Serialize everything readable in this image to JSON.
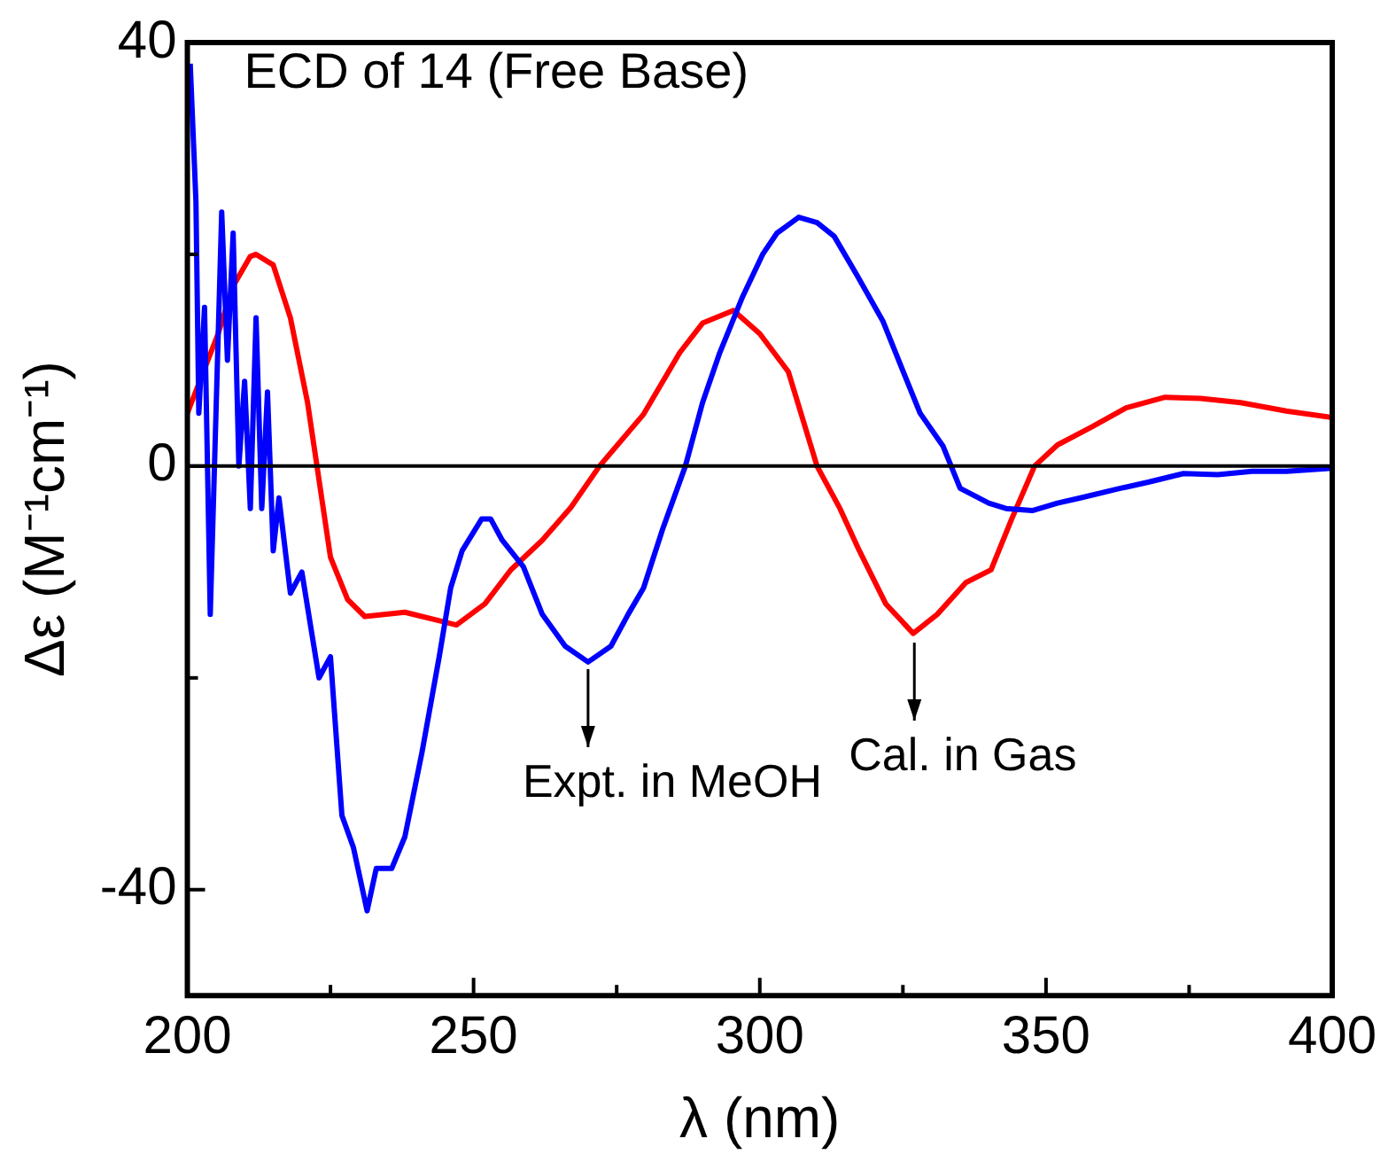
{
  "chart_data": {
    "type": "line",
    "title": "ECD of 14 (Free Base)",
    "xlabel": "λ (nm)",
    "ylabel": "Δε (M⁻¹cm⁻¹)",
    "xlim": [
      200,
      400
    ],
    "ylim": [
      -50,
      40
    ],
    "xticks": [
      200,
      {
        "value": 225,
        "label": null
      },
      250,
      {
        "value": 275,
        "label": null
      },
      300,
      {
        "value": 325,
        "label": null
      },
      350,
      {
        "value": 375,
        "label": null
      },
      400
    ],
    "yticks": [
      -40,
      {
        "value": -20,
        "label": null
      },
      0,
      {
        "value": 20,
        "label": null
      },
      40
    ],
    "grid": false,
    "marker": "none",
    "line_style": "solid",
    "ref_lines": [
      {
        "axis": "y",
        "value": 0,
        "color": "#000000"
      }
    ],
    "annotations": [
      {
        "text": "Expt. in MeOH",
        "x": 270,
        "y": -18.5
      },
      {
        "text": "Cal. in Gas",
        "x": 327,
        "y": -16
      }
    ],
    "series": [
      {
        "color": "#0000ff",
        "x": [
          200.5,
          201.5,
          202,
          203,
          204,
          205,
          206,
          207,
          208,
          209,
          210,
          211,
          212,
          213,
          214,
          215,
          216,
          218,
          220,
          223,
          225,
          227,
          229,
          231.4,
          233,
          235.7,
          238,
          241,
          244,
          246,
          248,
          251.4,
          253,
          255,
          258.7,
          262,
          266,
          270,
          274,
          277,
          279.7,
          283,
          287,
          290,
          293,
          297,
          300.5,
          303,
          306.8,
          310,
          313,
          317,
          321.5,
          325,
          328,
          332,
          335,
          340,
          343,
          347.6,
          352,
          356,
          363,
          368,
          374,
          380,
          386,
          392,
          400
        ],
        "values": [
          38,
          25,
          5,
          15,
          -14,
          5,
          24,
          10,
          22,
          0,
          8,
          -4,
          14,
          -4,
          7,
          -8,
          -3,
          -12,
          -10,
          -20,
          -18,
          -33,
          -36,
          -42,
          -38,
          -38,
          -35,
          -27,
          -18,
          -11.5,
          -8,
          -5,
          -5,
          -7,
          -9.5,
          -14,
          -17,
          -18.5,
          -17,
          -14,
          -11.5,
          -6,
          0,
          6,
          10.7,
          16,
          20,
          22,
          23.5,
          23,
          21.7,
          18,
          13.7,
          9,
          5,
          1.9,
          -2.1,
          -3.5,
          -4,
          -4.2,
          -3.5,
          -3,
          -2.1,
          -1.5,
          -0.7,
          -0.8,
          -0.5,
          -0.5,
          -0.2
        ]
      },
      {
        "color": "#ff0000",
        "x": [
          200,
          205.3,
          208,
          211,
          212,
          215,
          218,
          221,
          225,
          228,
          231,
          238,
          247,
          252,
          256.5,
          262,
          267,
          272,
          279.7,
          286,
          290,
          295.4,
          300,
          305,
          310,
          314,
          317.4,
          322,
          326.8,
          331,
          336,
          340.4,
          344,
          348,
          352,
          358,
          364,
          370.8,
          377,
          384,
          392,
          400
        ],
        "values": [
          5,
          12.4,
          17,
          19.8,
          20,
          19,
          14,
          6,
          -8.6,
          -12.6,
          -14.2,
          -13.8,
          -15,
          -13,
          -9.8,
          -7,
          -3.9,
          0,
          4.9,
          10.7,
          13.5,
          14.7,
          12.5,
          8.9,
          0,
          -4,
          -8,
          -13,
          -15.8,
          -14,
          -11,
          -9.8,
          -5,
          0,
          2,
          3.7,
          5.5,
          6.5,
          6.4,
          6,
          5.2,
          4.6
        ]
      }
    ]
  }
}
